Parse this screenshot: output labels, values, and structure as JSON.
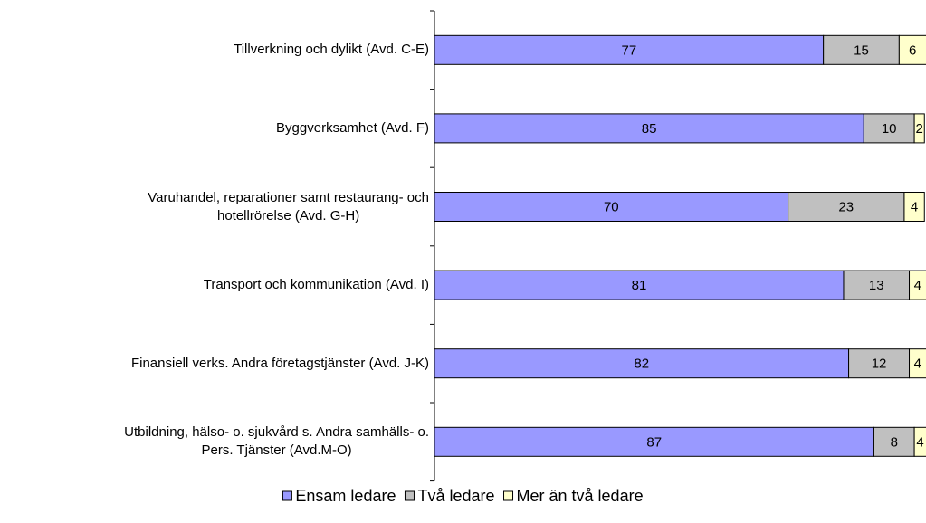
{
  "chart_data": {
    "type": "stacked_bar_horizontal",
    "categories": [
      "Tillverkning och dylikt (Avd. C-E)",
      "Byggverksamhet (Avd. F)",
      "Varuhandel, reparationer samt restaurang- och\nhotellrörelse (Avd. G-H)",
      "Transport och kommunikation (Avd. I)",
      "Finansiell verks. Andra företagstjänster (Avd. J-K)",
      "Utbildning, hälso- o. sjukvård s. Andra samhälls- o.\nPers. Tjänster (Avd.M-O)"
    ],
    "series": [
      {
        "name": "Ensam ledare",
        "color": "#9999ff",
        "values": [
          77,
          85,
          70,
          81,
          82,
          87
        ]
      },
      {
        "name": "Två ledare",
        "color": "#c0c0c0",
        "values": [
          15,
          10,
          23,
          13,
          12,
          8
        ]
      },
      {
        "name": "Mer än två ledare",
        "color": "#ffffcc",
        "values": [
          6,
          2,
          4,
          4,
          4,
          4
        ]
      }
    ],
    "xlim": [
      0,
      100
    ],
    "legend": "bottom"
  }
}
